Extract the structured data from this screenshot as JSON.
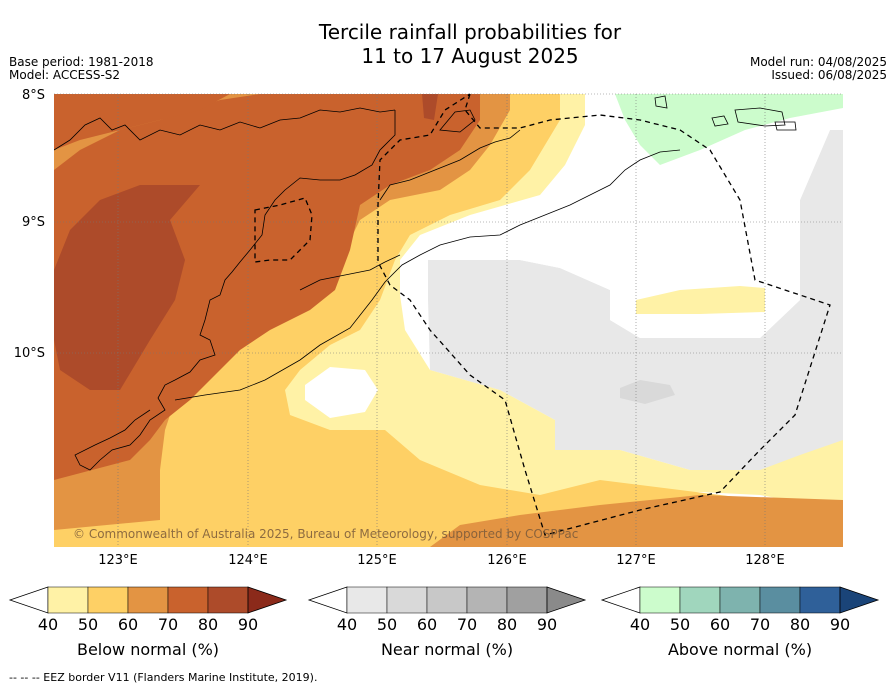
{
  "title_line1": "Tercile rainfall probabilities for",
  "title_line2": "11 to 17 August 2025",
  "base_period": "Base period: 1981-2018",
  "model": "Model: ACCESS-S2",
  "model_run": "Model run: 04/08/2025",
  "issued": "Issued: 06/08/2025",
  "lat_labels": [
    "8°S",
    "9°S",
    "10°S"
  ],
  "lon_labels": [
    "123°E",
    "124°E",
    "125°E",
    "126°E",
    "127°E",
    "128°E"
  ],
  "copyright": "© Commonwealth of Australia 2025, Bureau of Meteorology, supported by COSPPac",
  "footer": "--  --  -- EEZ border V11 (Flanders Marine Institute, 2019).",
  "colorbars": [
    {
      "label": "Below normal (%)",
      "ticks": [
        "40",
        "50",
        "60",
        "70",
        "80",
        "90"
      ],
      "colors": [
        "#fff2a6",
        "#fed065",
        "#e39443",
        "#c9622d",
        "#ad4b2a",
        "#8b2a1a"
      ]
    },
    {
      "label": "Near normal (%)",
      "ticks": [
        "40",
        "50",
        "60",
        "70",
        "80",
        "90"
      ],
      "colors": [
        "#e8e8e8",
        "#d9d9d9",
        "#c8c8c8",
        "#b4b4b4",
        "#a0a0a0",
        "#8a8a8a"
      ]
    },
    {
      "label": "Above normal (%)",
      "ticks": [
        "40",
        "50",
        "60",
        "70",
        "80",
        "90"
      ],
      "colors": [
        "#ccfccc",
        "#a0d6bd",
        "#7eb3ae",
        "#5a8ea0",
        "#2f6099",
        "#1a4478"
      ]
    }
  ]
}
